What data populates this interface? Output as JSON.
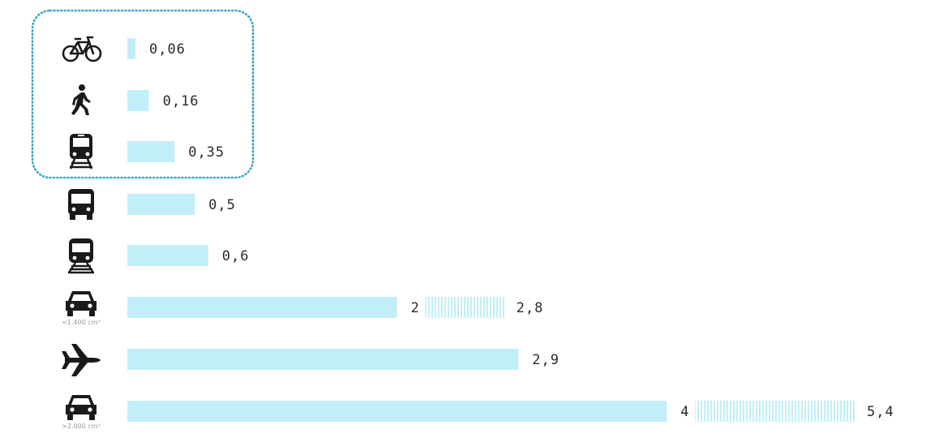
{
  "chart_data": {
    "type": "bar",
    "orientation": "horizontal",
    "categories": [
      {
        "icon": "bicycle-icon",
        "sublabel": ""
      },
      {
        "icon": "pedestrian-icon",
        "sublabel": ""
      },
      {
        "icon": "train-icon",
        "sublabel": ""
      },
      {
        "icon": "bus-icon",
        "sublabel": ""
      },
      {
        "icon": "tram-icon",
        "sublabel": ""
      },
      {
        "icon": "car-icon",
        "sublabel": "<1.400 cm³"
      },
      {
        "icon": "airplane-icon",
        "sublabel": ""
      },
      {
        "icon": "car-icon",
        "sublabel": ">2.000 cm³"
      }
    ],
    "values": [
      0.06,
      0.16,
      0.35,
      0.5,
      0.6,
      2,
      2.9,
      4
    ],
    "range_max": [
      null,
      null,
      null,
      null,
      null,
      2.8,
      null,
      5.4
    ],
    "value_labels": [
      "0,06",
      "0,16",
      "0,35",
      "0,5",
      "0,6",
      "2",
      "2,9",
      "4"
    ],
    "range_max_labels": [
      "",
      "",
      "",
      "",
      "",
      "2,8",
      "",
      "5,4"
    ],
    "highlight_group": [
      0,
      1,
      2
    ],
    "colors": {
      "bar": "#c2eef8",
      "range": "#c2eef8",
      "highlight_border": "#3aa8c4",
      "icon": "#1a1a1a",
      "text": "#2a2a2a"
    }
  }
}
